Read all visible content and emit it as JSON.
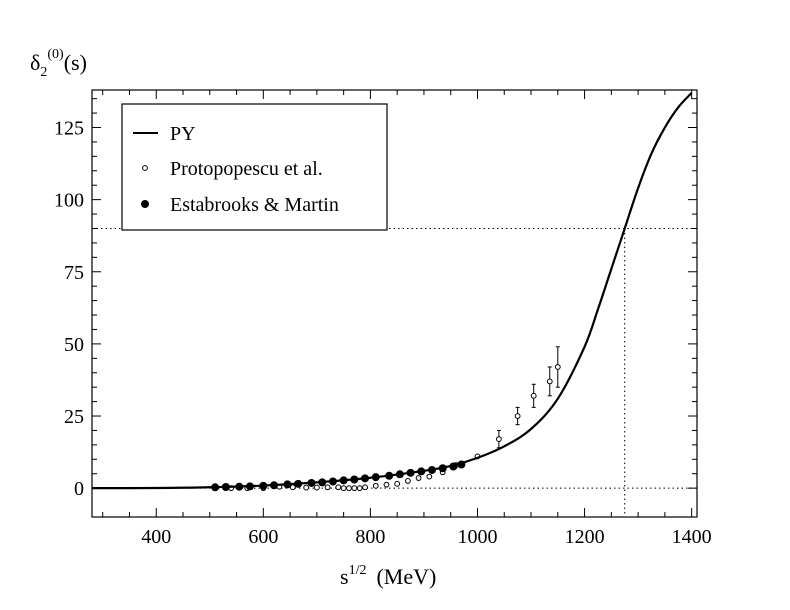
{
  "chart_data": {
    "type": "scatter",
    "ylabel_main": "δ",
    "ylabel_sub": "2",
    "ylabel_sup": "(0)",
    "ylabel_tail": "(s)",
    "xlabel_main": "s",
    "xlabel_sup": "1/2",
    "xlabel_tail": "(MeV)",
    "xlim": [
      280,
      1410
    ],
    "ylim": [
      -10,
      138
    ],
    "x_ticks": [
      400,
      600,
      800,
      1000,
      1200,
      1400
    ],
    "x_tick_labels": [
      "400",
      "600",
      "800",
      "1000",
      "1200",
      "1400"
    ],
    "y_ticks": [
      0,
      25,
      50,
      75,
      100,
      125
    ],
    "y_tick_labels": [
      "0",
      "25",
      "50",
      "75",
      "100",
      "125"
    ],
    "reference_lines": {
      "y": 90,
      "x": 1275
    },
    "legend": {
      "position": "top-left",
      "entries": [
        "PY",
        "Protopopescu et al.",
        "Estabrooks & Martin"
      ]
    },
    "series": [
      {
        "name": "PY",
        "style": "line",
        "x": [
          280,
          400,
          500,
          600,
          700,
          800,
          900,
          950,
          1000,
          1050,
          1100,
          1150,
          1200,
          1225,
          1250,
          1275,
          1300,
          1325,
          1350,
          1375,
          1400
        ],
        "y": [
          0,
          0.05,
          0.3,
          0.9,
          2.0,
          3.6,
          6.0,
          7.7,
          10.5,
          14.5,
          20.5,
          31,
          49,
          62,
          76,
          90,
          104,
          116,
          125,
          132,
          137
        ]
      },
      {
        "name": "Protopopescu et al.",
        "style": "open-circle",
        "x": [
          510,
          540,
          570,
          600,
          630,
          655,
          680,
          700,
          720,
          740,
          750,
          760,
          770,
          780,
          790,
          810,
          830,
          850,
          870,
          890,
          910,
          935,
          960,
          1000,
          1040,
          1075,
          1105,
          1135,
          1150
        ],
        "y": [
          0,
          0,
          0,
          0,
          0.5,
          0.3,
          0.2,
          0.2,
          0.3,
          0.3,
          0,
          0,
          0,
          0,
          0.3,
          0.8,
          1.2,
          1.5,
          2.5,
          3.5,
          4,
          5.5,
          8,
          11,
          17,
          25,
          32,
          37,
          42
        ],
        "err": [
          0.5,
          0.5,
          0.5,
          0.5,
          0.5,
          0.5,
          0.5,
          0.5,
          0.5,
          0.5,
          0.5,
          0.5,
          0.5,
          0.5,
          0.5,
          0.7,
          0.8,
          0.9,
          1,
          1.1,
          1.2,
          1.3,
          1.5,
          1.5,
          3,
          3,
          4,
          5,
          7
        ]
      },
      {
        "name": "Estabrooks & Martin",
        "style": "filled-circle",
        "x": [
          510,
          530,
          555,
          575,
          600,
          620,
          645,
          665,
          690,
          710,
          730,
          750,
          770,
          790,
          810,
          835,
          855,
          875,
          895,
          915,
          935,
          955,
          970
        ],
        "y": [
          0.3,
          0.4,
          0.5,
          0.6,
          0.8,
          1.0,
          1.3,
          1.5,
          1.8,
          2.0,
          2.3,
          2.7,
          3.0,
          3.4,
          3.8,
          4.3,
          4.8,
          5.3,
          5.8,
          6.3,
          6.9,
          7.5,
          8.2
        ]
      }
    ]
  }
}
